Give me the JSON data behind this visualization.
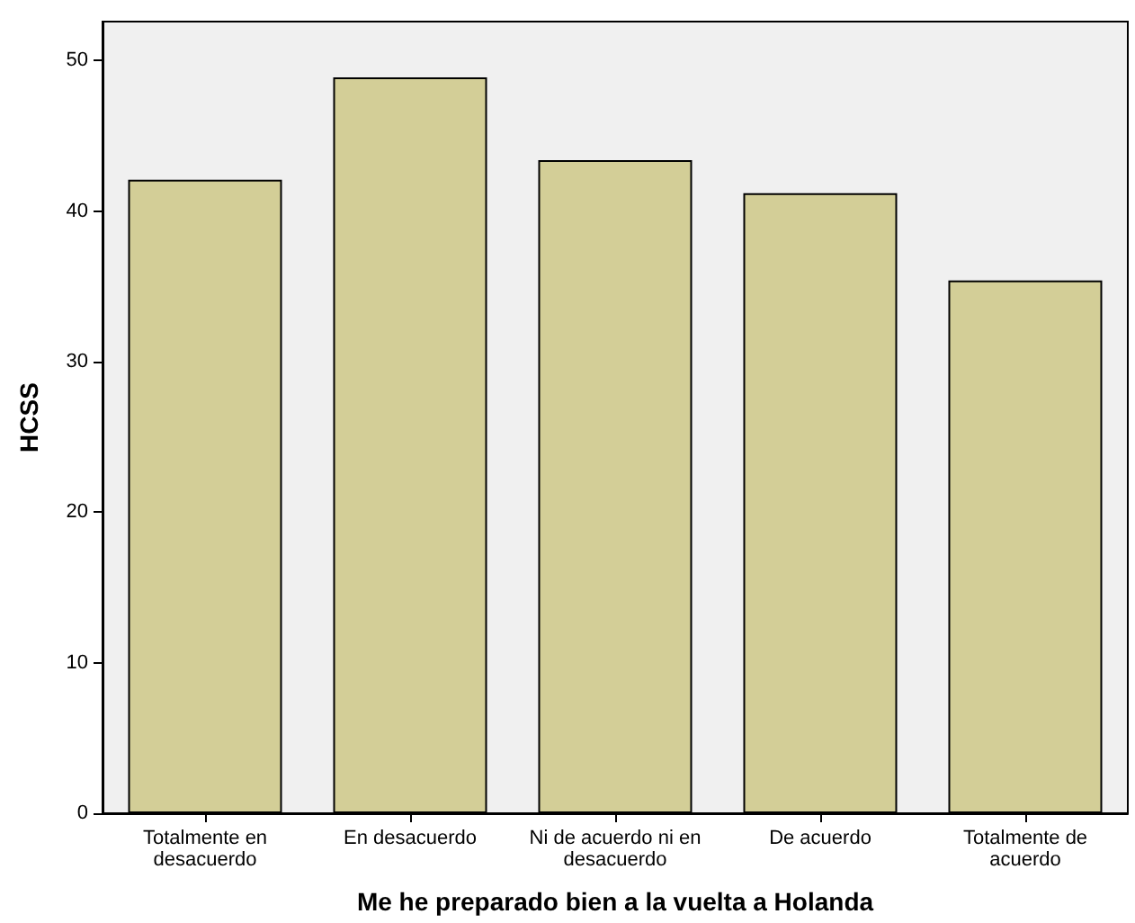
{
  "chart_data": {
    "type": "bar",
    "xlabel": "Me he preparado bien a la vuelta a Holanda",
    "ylabel": "HCSS",
    "categories": [
      "Totalmente en desacuerdo",
      "En desacuerdo",
      "Ni de acuerdo ni en desacuerdo",
      "De acuerdo",
      "Totalmente de acuerdo"
    ],
    "values": [
      42.1,
      48.9,
      43.4,
      41.2,
      35.4
    ],
    "color": "#d3ce97",
    "ylim": [
      0,
      52.6
    ],
    "yticks": [
      0,
      10,
      20,
      30,
      40,
      50
    ],
    "grid": false
  }
}
